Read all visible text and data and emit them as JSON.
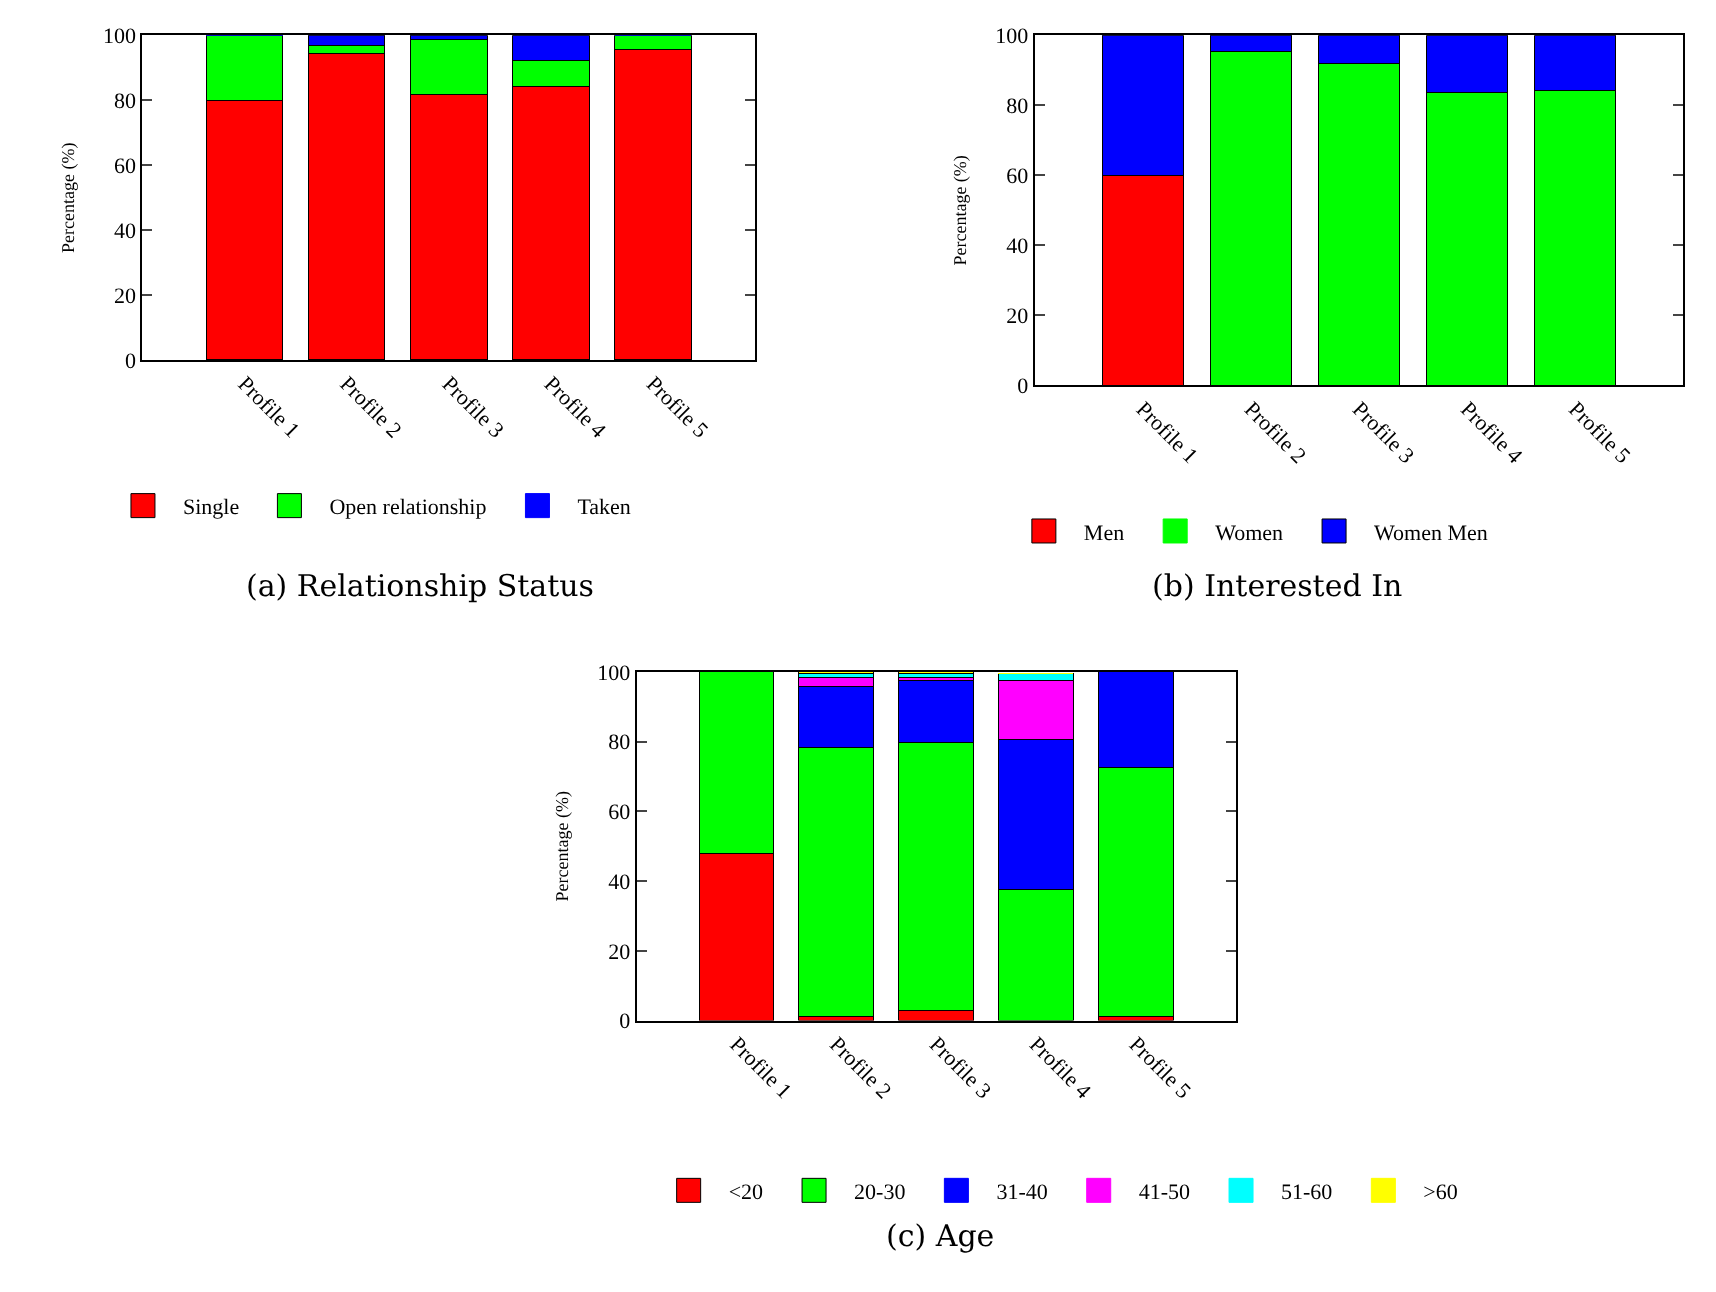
{
  "chart_data": [
    {
      "type": "bar",
      "stacked": true,
      "title": "(a) Relationship Status",
      "ylabel": "Percentage (%)",
      "categories": [
        "Profile 1",
        "Profile 2",
        "Profile 3",
        "Profile 4",
        "Profile 5"
      ],
      "ylim": [
        0,
        100
      ],
      "yticks": [
        0,
        20,
        40,
        60,
        80,
        100
      ],
      "legend": "bottom",
      "series": [
        {
          "name": "Single",
          "color": "#ff0000",
          "values": [
            80,
            94.3,
            81.7,
            84.2,
            95.5
          ]
        },
        {
          "name": "Open relationship",
          "color": "#00ff00",
          "values": [
            20,
            2.7,
            17.1,
            8.1,
            4.5
          ]
        },
        {
          "name": "Taken",
          "color": "#0000ff",
          "values": [
            0,
            3,
            1.2,
            7.7,
            0
          ]
        }
      ]
    },
    {
      "type": "bar",
      "stacked": true,
      "title": "(b) Interested In",
      "ylabel": "Percentage (%)",
      "categories": [
        "Profile 1",
        "Profile 2",
        "Profile 3",
        "Profile 4",
        "Profile 5"
      ],
      "ylim": [
        0,
        100
      ],
      "yticks": [
        0,
        20,
        40,
        60,
        80,
        100
      ],
      "legend": "bottom",
      "series": [
        {
          "name": "Men",
          "color": "#ff0000",
          "values": [
            60,
            0,
            0,
            0,
            0
          ]
        },
        {
          "name": "Women",
          "color": "#00ff00",
          "values": [
            0,
            95.5,
            92.1,
            83.6,
            84.2
          ]
        },
        {
          "name": "Women Men",
          "color": "#0000ff",
          "values": [
            40,
            4.5,
            7.9,
            16.4,
            15.8
          ]
        }
      ]
    },
    {
      "type": "bar",
      "stacked": true,
      "title": "(c) Age",
      "ylabel": "Percentage (%)",
      "categories": [
        "Profile 1",
        "Profile 2",
        "Profile 3",
        "Profile 4",
        "Profile 5"
      ],
      "ylim": [
        0,
        100
      ],
      "yticks": [
        0,
        20,
        40,
        60,
        80,
        100
      ],
      "legend": "bottom",
      "series": [
        {
          "name": "<20",
          "color": "#ff0000",
          "values": [
            47.8,
            1.1,
            2.8,
            null,
            1.1
          ]
        },
        {
          "name": "20-30",
          "color": "#00ff00",
          "values": [
            52.2,
            77.1,
            76.9,
            37.5,
            71.5
          ]
        },
        {
          "name": "31-40",
          "color": "#0000ff",
          "values": [
            0,
            17.5,
            17.9,
            43.1,
            27.4
          ]
        },
        {
          "name": "41-50",
          "color": "#ff00ff",
          "values": [
            0,
            2.8,
            0.9,
            16.9,
            0
          ]
        },
        {
          "name": "51-60",
          "color": "#00ffff",
          "values": [
            0,
            1.1,
            0.9,
            1.9,
            0
          ]
        },
        {
          "name": ">60",
          "color": "#ffff00",
          "values": [
            0,
            0.4,
            0.6,
            0,
            0
          ]
        }
      ]
    }
  ]
}
